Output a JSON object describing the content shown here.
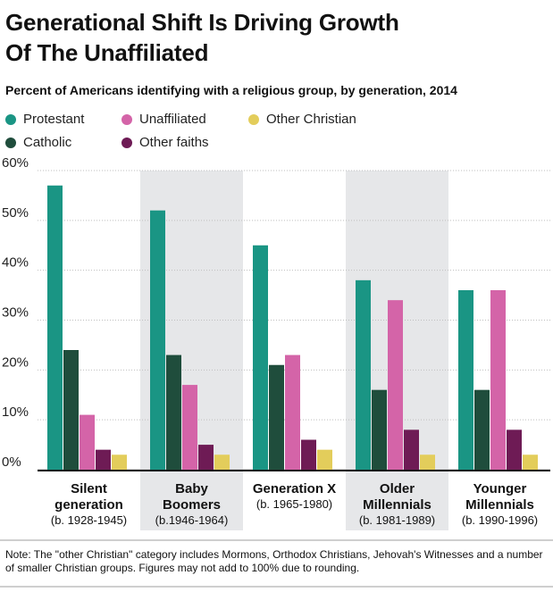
{
  "title_line1": "Generational Shift Is Driving Growth",
  "title_line2": "Of The Unaffiliated",
  "subtitle": "Percent of Americans identifying with a religious group, by generation, 2014",
  "note": "Note: The \"other Christian\" category includes Mormons, Orthodox Christians, Jehovah's Witnesses and a number of smaller Christian groups. Figures may not add to 100% due to rounding.",
  "colors": {
    "protestant": "#1a9584",
    "catholic": "#1f4d3c",
    "unaffiliated": "#d464a8",
    "other_faiths": "#6e1b55",
    "other_christian": "#e3cd5b",
    "band": "#e6e7e9",
    "grid": "#bfbfbf"
  },
  "chart_data": {
    "type": "bar",
    "ylim": [
      0,
      60
    ],
    "yticks": [
      0,
      10,
      20,
      30,
      40,
      50,
      60
    ],
    "ytick_labels": [
      "0%",
      "10%",
      "20%",
      "30%",
      "40%",
      "50%",
      "60%"
    ],
    "legend": [
      {
        "name": "Protestant",
        "color": "#1a9584"
      },
      {
        "name": "Unaffiliated",
        "color": "#d464a8"
      },
      {
        "name": "Other Christian",
        "color": "#e3cd5b"
      },
      {
        "name": "Catholic",
        "color": "#1f4d3c"
      },
      {
        "name": "Other faiths",
        "color": "#6e1b55"
      }
    ],
    "categories": [
      {
        "name_lines": [
          "Silent",
          "generation"
        ],
        "years": "(b. 1928-1945)",
        "shaded": false
      },
      {
        "name_lines": [
          "Baby",
          "Boomers"
        ],
        "years": "(b.1946-1964)",
        "shaded": true
      },
      {
        "name_lines": [
          "Generation X"
        ],
        "years": "(b. 1965-1980)",
        "shaded": false
      },
      {
        "name_lines": [
          "Older",
          "Millennials"
        ],
        "years": "(b. 1981-1989)",
        "shaded": true
      },
      {
        "name_lines": [
          "Younger",
          "Millennials"
        ],
        "years": "(b. 1990-1996)",
        "shaded": false
      }
    ],
    "series": [
      {
        "name": "Protestant",
        "color": "#1a9584",
        "values": [
          57,
          52,
          45,
          38,
          36
        ]
      },
      {
        "name": "Catholic",
        "color": "#1f4d3c",
        "values": [
          24,
          23,
          21,
          16,
          16
        ]
      },
      {
        "name": "Unaffiliated",
        "color": "#d464a8",
        "values": [
          11,
          17,
          23,
          34,
          36
        ]
      },
      {
        "name": "Other faiths",
        "color": "#6e1b55",
        "values": [
          4,
          5,
          6,
          8,
          8
        ]
      },
      {
        "name": "Other Christian",
        "color": "#e3cd5b",
        "values": [
          3,
          3,
          4,
          3,
          3
        ]
      }
    ]
  }
}
